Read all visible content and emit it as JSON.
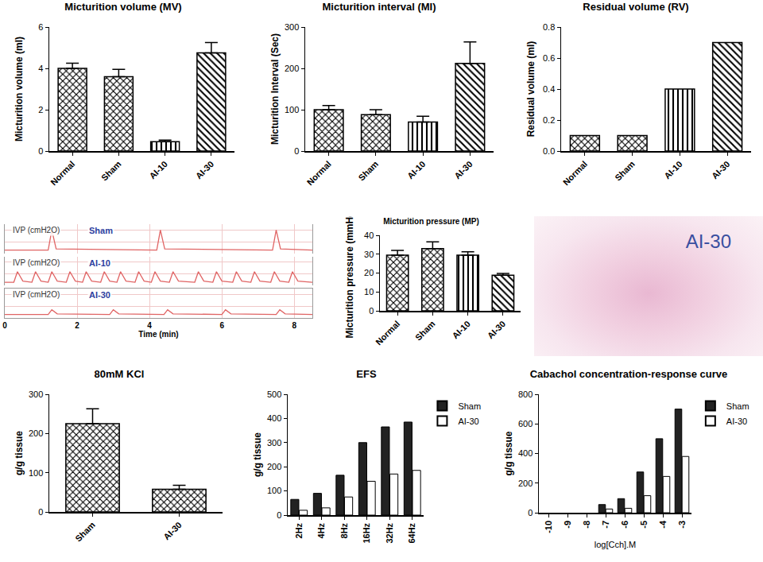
{
  "chart_data": [
    {
      "type": "bar",
      "title": "Micturition volume (MV)",
      "y_label": "Micturition volume (ml)",
      "categories": [
        "Normal",
        "Sham",
        "AI-10",
        "AI-30"
      ],
      "values": [
        4.0,
        3.6,
        0.45,
        4.75
      ],
      "errors": [
        0.25,
        0.35,
        0.08,
        0.5
      ],
      "color": "#000000",
      "ylim": [
        0,
        6
      ],
      "yticks": [
        0,
        2,
        4,
        6
      ],
      "grid": false
    },
    {
      "type": "bar",
      "title": "Micturition interval (MI)",
      "y_label": "Micturition Interval (Sec)",
      "categories": [
        "Normal",
        "Sham",
        "AI-10",
        "AI-30"
      ],
      "values": [
        100,
        88,
        70,
        212
      ],
      "errors": [
        10,
        12,
        14,
        52
      ],
      "color": "#000000",
      "ylim": [
        0,
        300
      ],
      "yticks": [
        0,
        100,
        200,
        300
      ],
      "grid": false
    },
    {
      "type": "bar",
      "title": "Residual volume (RV)",
      "y_label": "Residual volume (ml)",
      "categories": [
        "Normal",
        "Sham",
        "AI-10",
        "AI-30"
      ],
      "values": [
        0.1,
        0.1,
        0.4,
        0.7
      ],
      "color": "#000000",
      "ylim": [
        0,
        0.8
      ],
      "yticks": [
        {
          "value": 0,
          "label": "0.0"
        },
        0.2,
        0.4,
        0.6,
        0.8
      ],
      "grid": false
    },
    {
      "type": "line",
      "y_label": "IVP (cmH2O)",
      "x_label": "Time (min)",
      "tick_labels": "x",
      "grid": true,
      "xlim": [
        0,
        8.5
      ],
      "xticks": [
        0,
        2,
        4,
        6,
        8
      ],
      "ylim": [
        0,
        25
      ],
      "color": "#e06464",
      "series": [
        {
          "name": "Sham",
          "x": [
            0,
            1.2,
            1.3,
            1.42,
            4.2,
            4.3,
            4.42,
            7.4,
            7.5,
            7.62,
            8.5
          ],
          "values": [
            3,
            3,
            20,
            4,
            3,
            20,
            4,
            3,
            20,
            4,
            3
          ]
        },
        {
          "name": "AI-10",
          "x": [
            0,
            0.25,
            0.35,
            0.5,
            0.75,
            0.85,
            1.0,
            1.2,
            1.3,
            1.45,
            1.7,
            1.8,
            1.95,
            2.15,
            2.25,
            2.4,
            2.65,
            2.75,
            2.9,
            3.1,
            3.2,
            3.35,
            3.6,
            3.7,
            3.85,
            4.05,
            4.15,
            4.3,
            4.55,
            4.65,
            4.8,
            5.25,
            5.35,
            5.5,
            5.75,
            5.85,
            6.0,
            6.3,
            6.4,
            6.55,
            6.8,
            6.9,
            7.05,
            7.35,
            7.45,
            7.6,
            7.85,
            7.95,
            8.1,
            8.5
          ],
          "values": [
            3,
            3,
            12,
            4,
            3,
            12,
            4,
            3,
            12,
            4,
            3,
            12,
            4,
            3,
            12,
            4,
            3,
            12,
            4,
            3,
            12,
            4,
            3,
            12,
            4,
            3,
            12,
            4,
            3,
            12,
            4,
            3,
            12,
            4,
            3,
            12,
            4,
            3,
            12,
            4,
            3,
            12,
            4,
            3,
            12,
            4,
            3,
            12,
            4,
            3
          ]
        },
        {
          "name": "AI-30",
          "x": [
            0,
            1.2,
            1.3,
            1.45,
            2.9,
            3.0,
            3.15,
            4.4,
            4.5,
            4.65,
            6.0,
            6.1,
            6.25,
            7.5,
            7.6,
            7.75,
            8.5
          ],
          "values": [
            3,
            3,
            7,
            3.5,
            3,
            7,
            3.5,
            3,
            7,
            3.5,
            3,
            7,
            3.5,
            3,
            7,
            3.5,
            3
          ]
        }
      ]
    },
    {
      "type": "bar",
      "title": "Micturition pressure (MP)",
      "y_label": "Micturition pressure (mmHg)",
      "categories": [
        "Normal",
        "Sham",
        "AI-10",
        "AI-30"
      ],
      "values": [
        29.5,
        33,
        29.5,
        18.8
      ],
      "errors": [
        2.5,
        3.5,
        1.8,
        1.0
      ],
      "color": "#000000",
      "ylim": [
        0,
        40
      ],
      "yticks": [
        0,
        10,
        20,
        30,
        40
      ],
      "grid": false
    },
    {
      "type": "bar",
      "title": "80mM KCl",
      "y_label": "g/g tissue",
      "categories": [
        "Sham",
        "AI-30"
      ],
      "values": [
        225,
        58
      ],
      "errors": [
        38,
        10
      ],
      "color": "#000000",
      "ylim": [
        0,
        300
      ],
      "yticks": [
        0,
        100,
        200,
        300
      ],
      "grid": false
    },
    {
      "type": "bar",
      "title": "EFS",
      "y_label": "g/g tissue",
      "legend": "right",
      "grid": false,
      "categories": [
        "2Hz",
        "4Hz",
        "8Hz",
        "16Hz",
        "32Hz",
        "64Hz"
      ],
      "series": [
        {
          "name": "Sham",
          "color": "#222222",
          "values": [
            65,
            90,
            165,
            300,
            365,
            385
          ]
        },
        {
          "name": "AI-30",
          "color": "#ffffff",
          "values": [
            20,
            30,
            75,
            140,
            170,
            185
          ]
        }
      ],
      "ylim": [
        0,
        500
      ],
      "yticks": [
        0,
        100,
        200,
        300,
        400,
        500
      ]
    },
    {
      "type": "bar",
      "title": "Cabachol concentration-response curve",
      "y_label": "g/g tissue",
      "x_label": "log[Cch].M",
      "legend": "right",
      "grid": false,
      "x": [
        -7,
        -6,
        -5,
        -4,
        -3
      ],
      "series": [
        {
          "name": "Sham",
          "color": "#222222",
          "values": [
            55,
            95,
            275,
            500,
            700
          ]
        },
        {
          "name": "AI-30",
          "color": "#ffffff",
          "values": [
            25,
            30,
            115,
            245,
            380
          ]
        }
      ],
      "xlim": [
        -10.5,
        -2.5
      ],
      "xticks": [
        -10,
        -9,
        -8,
        -7,
        -6,
        -5,
        -4,
        -3
      ],
      "ylim": [
        0,
        800
      ],
      "yticks": [
        0,
        200,
        400,
        600,
        800
      ]
    }
  ],
  "histology": {
    "label": "AI-30"
  }
}
